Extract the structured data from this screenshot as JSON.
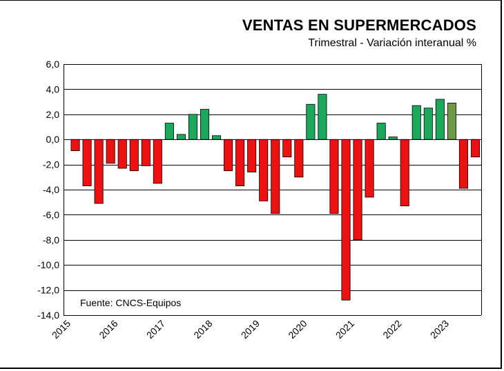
{
  "chart_data": {
    "type": "bar",
    "title": "VENTAS  EN SUPERMERCADOS",
    "subtitle": "Trimestral - Variación interanual %",
    "note": "Fuente: CNCS-Equipos",
    "ylim": [
      -14,
      6
    ],
    "yticks": [
      {
        "value": 6,
        "label": "6,0"
      },
      {
        "value": 4,
        "label": "4,0"
      },
      {
        "value": 2,
        "label": "2,0"
      },
      {
        "value": 0,
        "label": "0,0"
      },
      {
        "value": -2,
        "label": "-2,0"
      },
      {
        "value": -4,
        "label": "-4,0"
      },
      {
        "value": -6,
        "label": "-6,0"
      },
      {
        "value": -8,
        "label": "-8,0"
      },
      {
        "value": -10,
        "label": "-10,0"
      },
      {
        "value": -12,
        "label": "-12,0"
      },
      {
        "value": -14,
        "label": "-14,0"
      }
    ],
    "xticks": [
      "2015",
      "2016",
      "2017",
      "2018",
      "2019",
      "2020",
      "2021",
      "2022",
      "2023"
    ],
    "grid": true,
    "colors": {
      "negative": "#ee1111",
      "positive": "#1aa85a",
      "highlight": "#6e9a44",
      "grid": "#000000",
      "bar_border": "#000000"
    },
    "values": [
      -0.9,
      -3.7,
      -5.1,
      -1.9,
      -2.3,
      -2.5,
      -2.1,
      -3.5,
      1.3,
      0.4,
      2.0,
      2.4,
      0.3,
      -2.5,
      -3.7,
      -2.6,
      -4.9,
      -5.9,
      -1.4,
      -3.0,
      2.8,
      3.6,
      -5.9,
      -12.8,
      -8.0,
      -4.6,
      1.3,
      0.2,
      -5.3,
      2.7,
      2.5,
      3.2,
      2.9,
      -3.9,
      -1.4
    ],
    "highlight_index": 32
  }
}
